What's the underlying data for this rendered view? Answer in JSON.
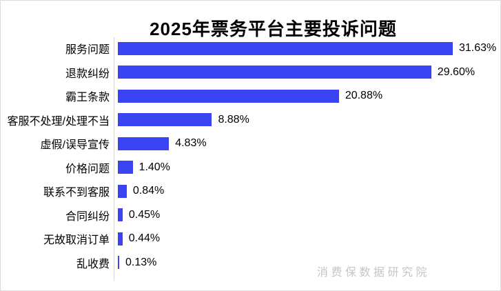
{
  "title": "2025年票务平台主要投诉问题",
  "watermark": "消费保数据研究院",
  "colors": {
    "bar": "#3B44F2",
    "axis_line": "#d9d9d9",
    "frame_border": "#dcdcdc",
    "watermark": "#c5c5c5",
    "text": "#000000"
  },
  "chart_data": {
    "type": "bar",
    "orientation": "horizontal",
    "title": "2025年票务平台主要投诉问题",
    "categories": [
      "服务问题",
      "退款纠纷",
      "霸王条款",
      "客服不处理/处理不当",
      "虚假/误导宣传",
      "价格问题",
      "联系不到客服",
      "合同纠纷",
      "无故取消订单",
      "乱收费"
    ],
    "values": [
      31.63,
      29.6,
      20.88,
      8.88,
      4.83,
      1.4,
      0.84,
      0.45,
      0.44,
      0.13
    ],
    "value_labels": [
      "31.63%",
      "29.60%",
      "20.88%",
      "8.88%",
      "4.83%",
      "1.40%",
      "0.84%",
      "0.45%",
      "0.44%",
      "0.13%"
    ],
    "unit": "%",
    "xlim": [
      0,
      35
    ],
    "xlabel": "",
    "ylabel": "",
    "legend": false,
    "gridlines": false,
    "sort_order": "descending"
  }
}
